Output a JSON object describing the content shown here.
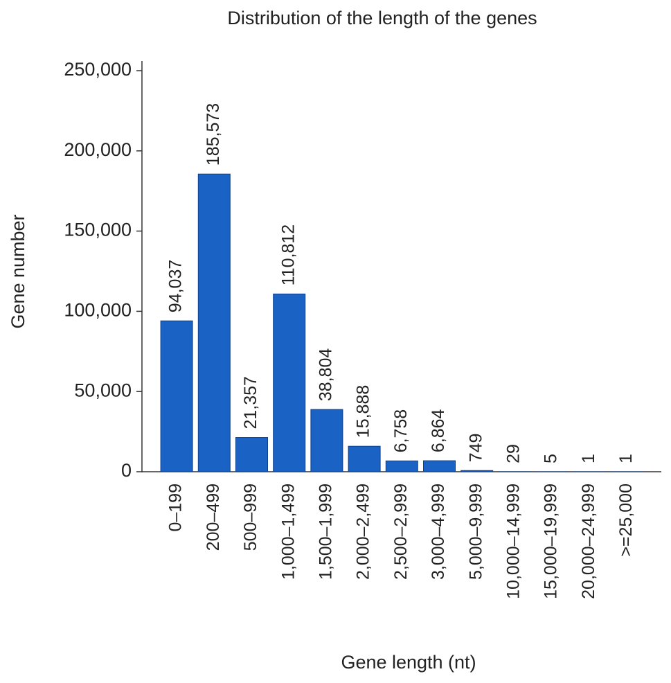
{
  "chart_data": {
    "type": "bar",
    "title": "Distribution of the length of the genes",
    "x_label": "Gene length (nt)",
    "y_label": "Gene number",
    "categories": [
      "0–199",
      "200–499",
      "500–999",
      "1,000–1,499",
      "1,500–1,999",
      "2,000–2,499",
      "2,500–2,999",
      "3,000–4,999",
      "5,000–9,999",
      "10,000–14,999",
      "15,000–19,999",
      "20,000–24,999",
      ">=25,000"
    ],
    "values": [
      94037,
      185573,
      21357,
      110812,
      38804,
      15888,
      6758,
      6864,
      749,
      29,
      5,
      1,
      1
    ],
    "value_labels": [
      "94,037",
      "185,573",
      "21,357",
      "110,812",
      "38,804",
      "15,888",
      "6,758",
      "6,864",
      "749",
      "29",
      "5",
      "1",
      "1"
    ],
    "color": "#1a62c4",
    "ylim": [
      0,
      250000
    ],
    "yticks": [
      0,
      {
        "value": 50000,
        "label": "50,000"
      },
      {
        "value": 100000,
        "label": "100,000"
      },
      {
        "value": 150000,
        "label": "150,000"
      },
      {
        "value": 200000,
        "label": "200,000"
      },
      {
        "value": 250000,
        "label": "250,000"
      }
    ]
  }
}
